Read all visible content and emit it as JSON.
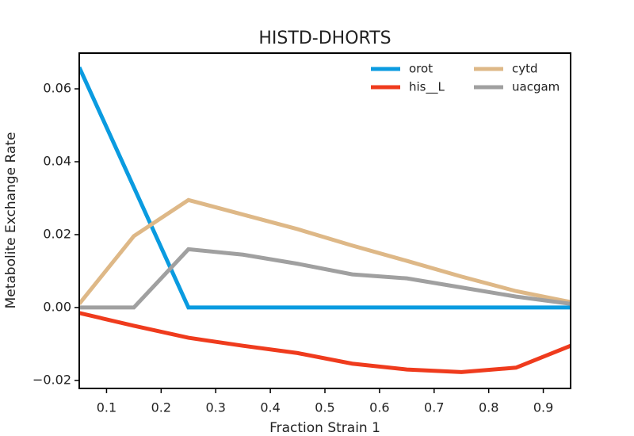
{
  "chart_data": {
    "type": "line",
    "title": "HISTD-DHORTS",
    "xlabel": "Fraction Strain 1",
    "ylabel": "Metabolite Exchange Rate",
    "x": [
      0.05,
      0.15,
      0.25,
      0.35,
      0.45,
      0.55,
      0.65,
      0.75,
      0.85,
      0.95
    ],
    "series": [
      {
        "name": "orot",
        "color": "#0a9be0",
        "values": [
          0.0659,
          0.033,
          0,
          0,
          0,
          0,
          0,
          0,
          0,
          0
        ]
      },
      {
        "name": "his__L",
        "color": "#ef3b1d",
        "values": [
          -0.0015,
          -0.005,
          -0.0083,
          -0.0105,
          -0.0125,
          -0.0154,
          -0.017,
          -0.0177,
          -0.0165,
          -0.0105
        ]
      },
      {
        "name": "cytd",
        "color": "#deb887",
        "values": [
          0.001,
          0.0196,
          0.0295,
          0.0255,
          0.0215,
          0.017,
          0.0128,
          0.0085,
          0.0045,
          0.0015
        ]
      },
      {
        "name": "uacgam",
        "color": "#a0a0a0",
        "values": [
          0,
          0,
          0.016,
          0.0145,
          0.012,
          0.0091,
          0.008,
          0.0055,
          0.003,
          0.001
        ]
      }
    ],
    "xlim": [
      0.05,
      0.95
    ],
    "ylim": [
      -0.0222,
      0.0698
    ],
    "xticks": [
      0.1,
      0.2,
      0.3,
      0.4,
      0.5,
      0.6,
      0.7,
      0.8,
      0.9
    ],
    "yticks": [
      {
        "value": -0.02,
        "label": "−0.02"
      },
      {
        "value": 0,
        "label": "0.00"
      },
      0.02,
      0.04,
      0.06
    ],
    "legend": "upper right",
    "legend_columns": 2
  }
}
